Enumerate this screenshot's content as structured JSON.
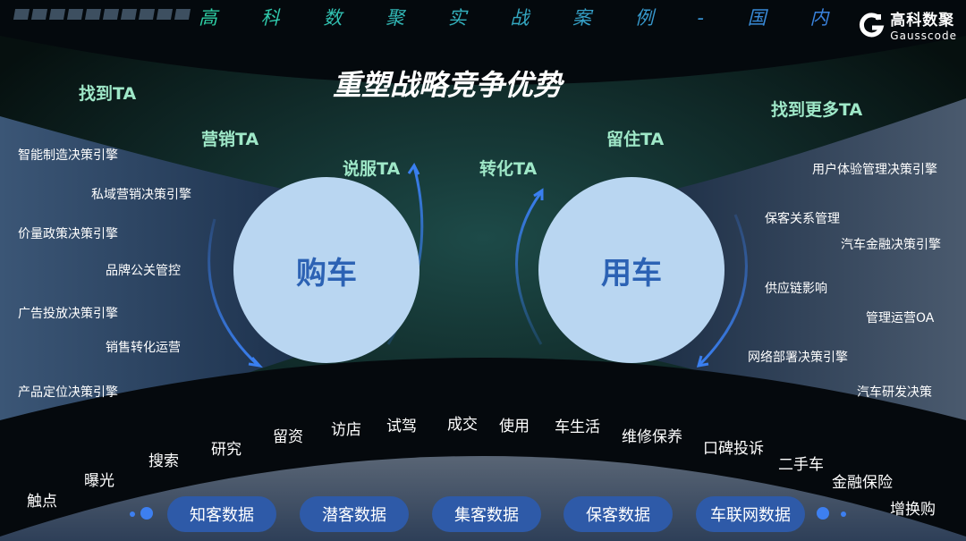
{
  "header": {
    "subtitle": "高 科 数 聚 实 战 案 例 - 国 内",
    "logo_cn": "高科数聚",
    "logo_en": "Gausscode"
  },
  "title": "重塑战略竞争优势",
  "ta_labels": [
    "找到TA",
    "营销TA",
    "说服TA",
    "转化TA",
    "留住TA",
    "找到更多TA"
  ],
  "circles": {
    "left": "购车",
    "right": "用车"
  },
  "left_engines": [
    "智能制造决策引擎",
    "私域营销决策引擎",
    "价量政策决策引擎",
    "品牌公关管控",
    "广告投放决策引擎",
    "销售转化运营",
    "产品定位决策引擎"
  ],
  "right_engines": [
    "用户体验管理决策引擎",
    "保客关系管理",
    "汽车金融决策引擎",
    "供应链影响",
    "管理运营OA",
    "网络部署决策引擎",
    "汽车研发决策"
  ],
  "journey": [
    "触点",
    "曝光",
    "搜索",
    "研究",
    "留资",
    "访店",
    "试驾",
    "成交",
    "使用",
    "车生活",
    "维修保养",
    "口碑投诉",
    "二手车",
    "金融保险",
    "增换购"
  ],
  "data_pills": [
    "知客数据",
    "潜客数据",
    "集客数据",
    "保客数据",
    "车联网数据"
  ],
  "colors": {
    "ta": "#9fe8c8",
    "circle": "#b9d6f1",
    "circle_text": "#2c62b4",
    "pill": "#2e5aa8",
    "arrow": "#3a7ff0"
  }
}
